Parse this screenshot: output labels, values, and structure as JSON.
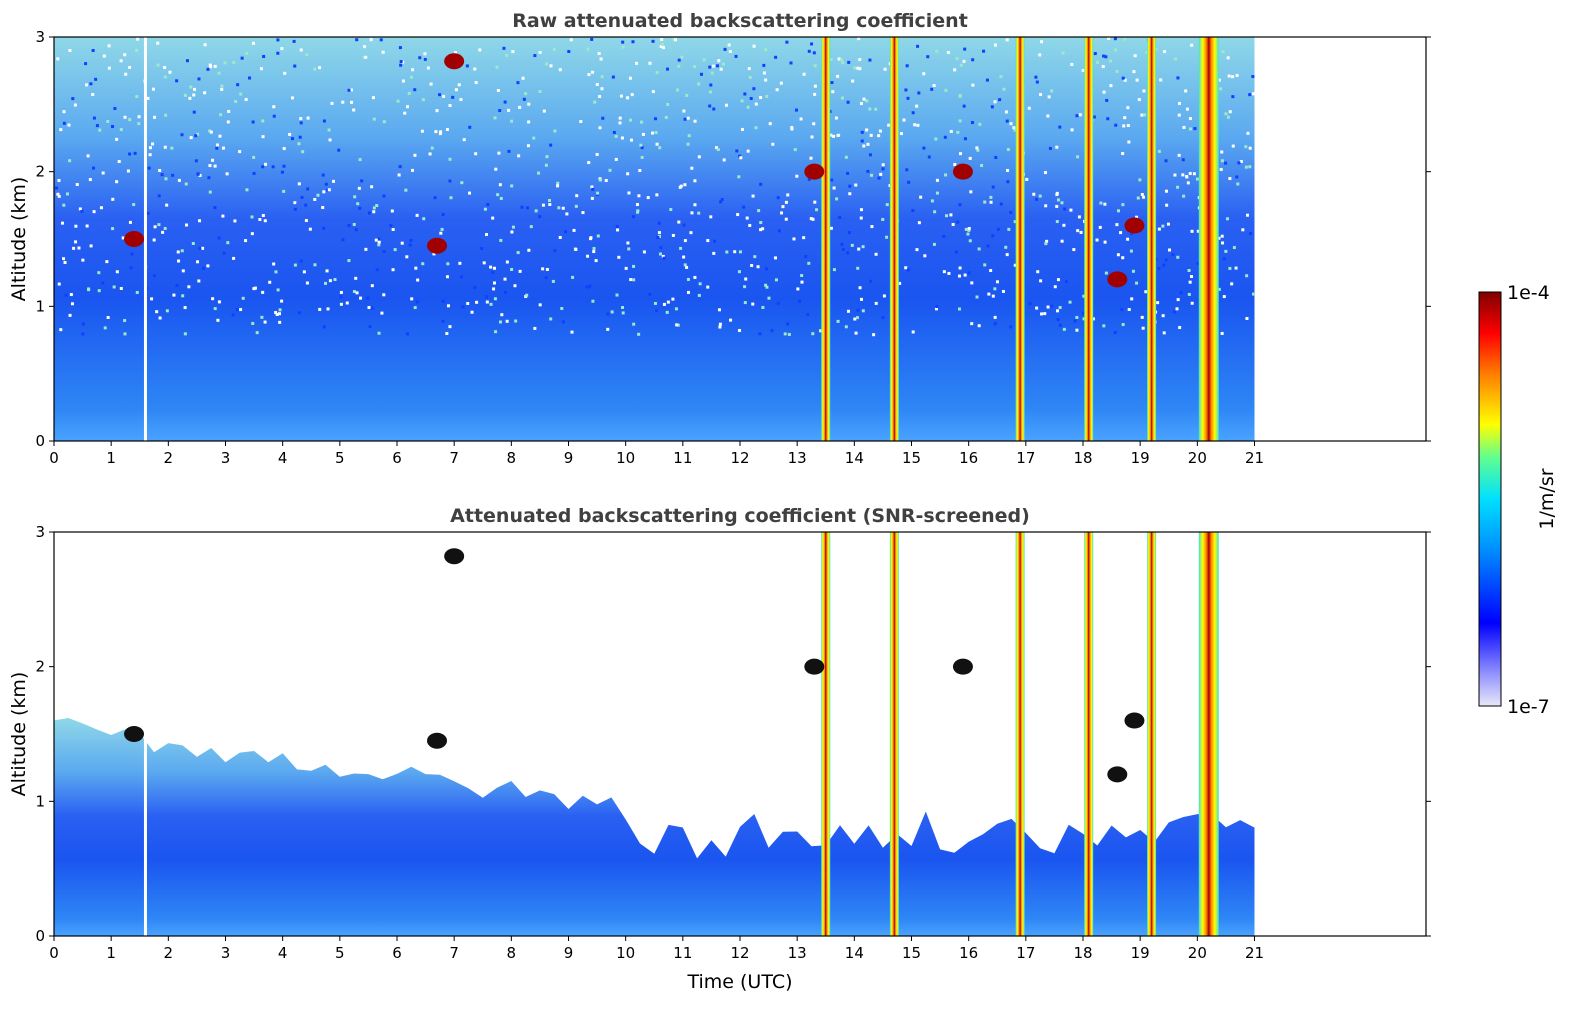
{
  "chart_data": [
    {
      "type": "heatmap",
      "title": "Raw attenuated backscattering coefficient",
      "xlabel": "",
      "ylabel": "Altitude (km)",
      "xlim": [
        0,
        24
      ],
      "ylim": [
        0,
        3
      ],
      "x_ticks": [
        0,
        1,
        2,
        3,
        4,
        5,
        6,
        7,
        8,
        9,
        10,
        11,
        12,
        13,
        14,
        15,
        16,
        17,
        18,
        19,
        20,
        21
      ],
      "x_tick_labels": [
        "0",
        "1",
        "2",
        "3",
        "4",
        "5",
        "6",
        "7",
        "8",
        "9",
        "10",
        "11",
        "12",
        "13",
        "14",
        "15",
        "16",
        "17",
        "18",
        "19",
        "20",
        "21"
      ],
      "y_ticks": [
        0,
        1,
        2,
        3
      ],
      "y_tick_labels": [
        "0",
        "1",
        "2",
        "3"
      ],
      "data_end_time": 21,
      "missing_data_time": 1.6,
      "screened": false,
      "cloud_columns": [
        {
          "time": 13.5,
          "top_km": 3.0
        },
        {
          "time": 14.7,
          "top_km": 3.0
        },
        {
          "time": 16.9,
          "top_km": 3.0
        },
        {
          "time": 18.1,
          "top_km": 3.0
        },
        {
          "time": 19.2,
          "top_km": 3.0
        },
        {
          "time": 20.2,
          "top_km": 3.0
        }
      ],
      "cloud_patches": [
        {
          "time": 7.0,
          "alt_km": 2.82
        },
        {
          "time": 1.4,
          "alt_km": 1.5
        },
        {
          "time": 6.7,
          "alt_km": 1.45
        },
        {
          "time": 13.3,
          "alt_km": 2.0
        },
        {
          "time": 15.9,
          "alt_km": 2.0
        },
        {
          "time": 18.6,
          "alt_km": 1.2
        },
        {
          "time": 18.9,
          "alt_km": 1.6
        }
      ]
    },
    {
      "type": "heatmap",
      "title": "Attenuated backscattering coefficient (SNR-screened)",
      "xlabel": "Time (UTC)",
      "ylabel": "Altitude (km)",
      "xlim": [
        0,
        24
      ],
      "ylim": [
        0,
        3
      ],
      "x_ticks": [
        0,
        1,
        2,
        3,
        4,
        5,
        6,
        7,
        8,
        9,
        10,
        11,
        12,
        13,
        14,
        15,
        16,
        17,
        18,
        19,
        20,
        21
      ],
      "x_tick_labels": [
        "0",
        "1",
        "2",
        "3",
        "4",
        "5",
        "6",
        "7",
        "8",
        "9",
        "10",
        "11",
        "12",
        "13",
        "14",
        "15",
        "16",
        "17",
        "18",
        "19",
        "20",
        "21"
      ],
      "y_ticks": [
        0,
        1,
        2,
        3
      ],
      "y_tick_labels": [
        "0",
        "1",
        "2",
        "3"
      ],
      "data_end_time": 21,
      "missing_data_time": 1.6,
      "screened": true,
      "cloud_columns": [
        {
          "time": 13.5,
          "top_km": 3.0
        },
        {
          "time": 14.7,
          "top_km": 3.0
        },
        {
          "time": 16.9,
          "top_km": 3.0
        },
        {
          "time": 18.1,
          "top_km": 3.0
        },
        {
          "time": 19.2,
          "top_km": 3.0
        },
        {
          "time": 20.2,
          "top_km": 3.0
        }
      ],
      "cloud_patches": [
        {
          "time": 7.0,
          "alt_km": 2.82
        },
        {
          "time": 1.4,
          "alt_km": 1.5
        },
        {
          "time": 6.7,
          "alt_km": 1.45
        },
        {
          "time": 13.3,
          "alt_km": 2.0
        },
        {
          "time": 15.9,
          "alt_km": 2.0
        },
        {
          "time": 18.6,
          "alt_km": 1.2
        },
        {
          "time": 18.9,
          "alt_km": 1.6
        }
      ]
    }
  ],
  "colorbar": {
    "label": "1/m/sr",
    "max_label": "1e-4",
    "min_label": "1e-7",
    "colormap": "jet",
    "colors": [
      "#e8e8f8",
      "#0000ff",
      "#00a0ff",
      "#40e0d0",
      "#ffff00",
      "#ff8000",
      "#ff0000",
      "#800000"
    ]
  }
}
